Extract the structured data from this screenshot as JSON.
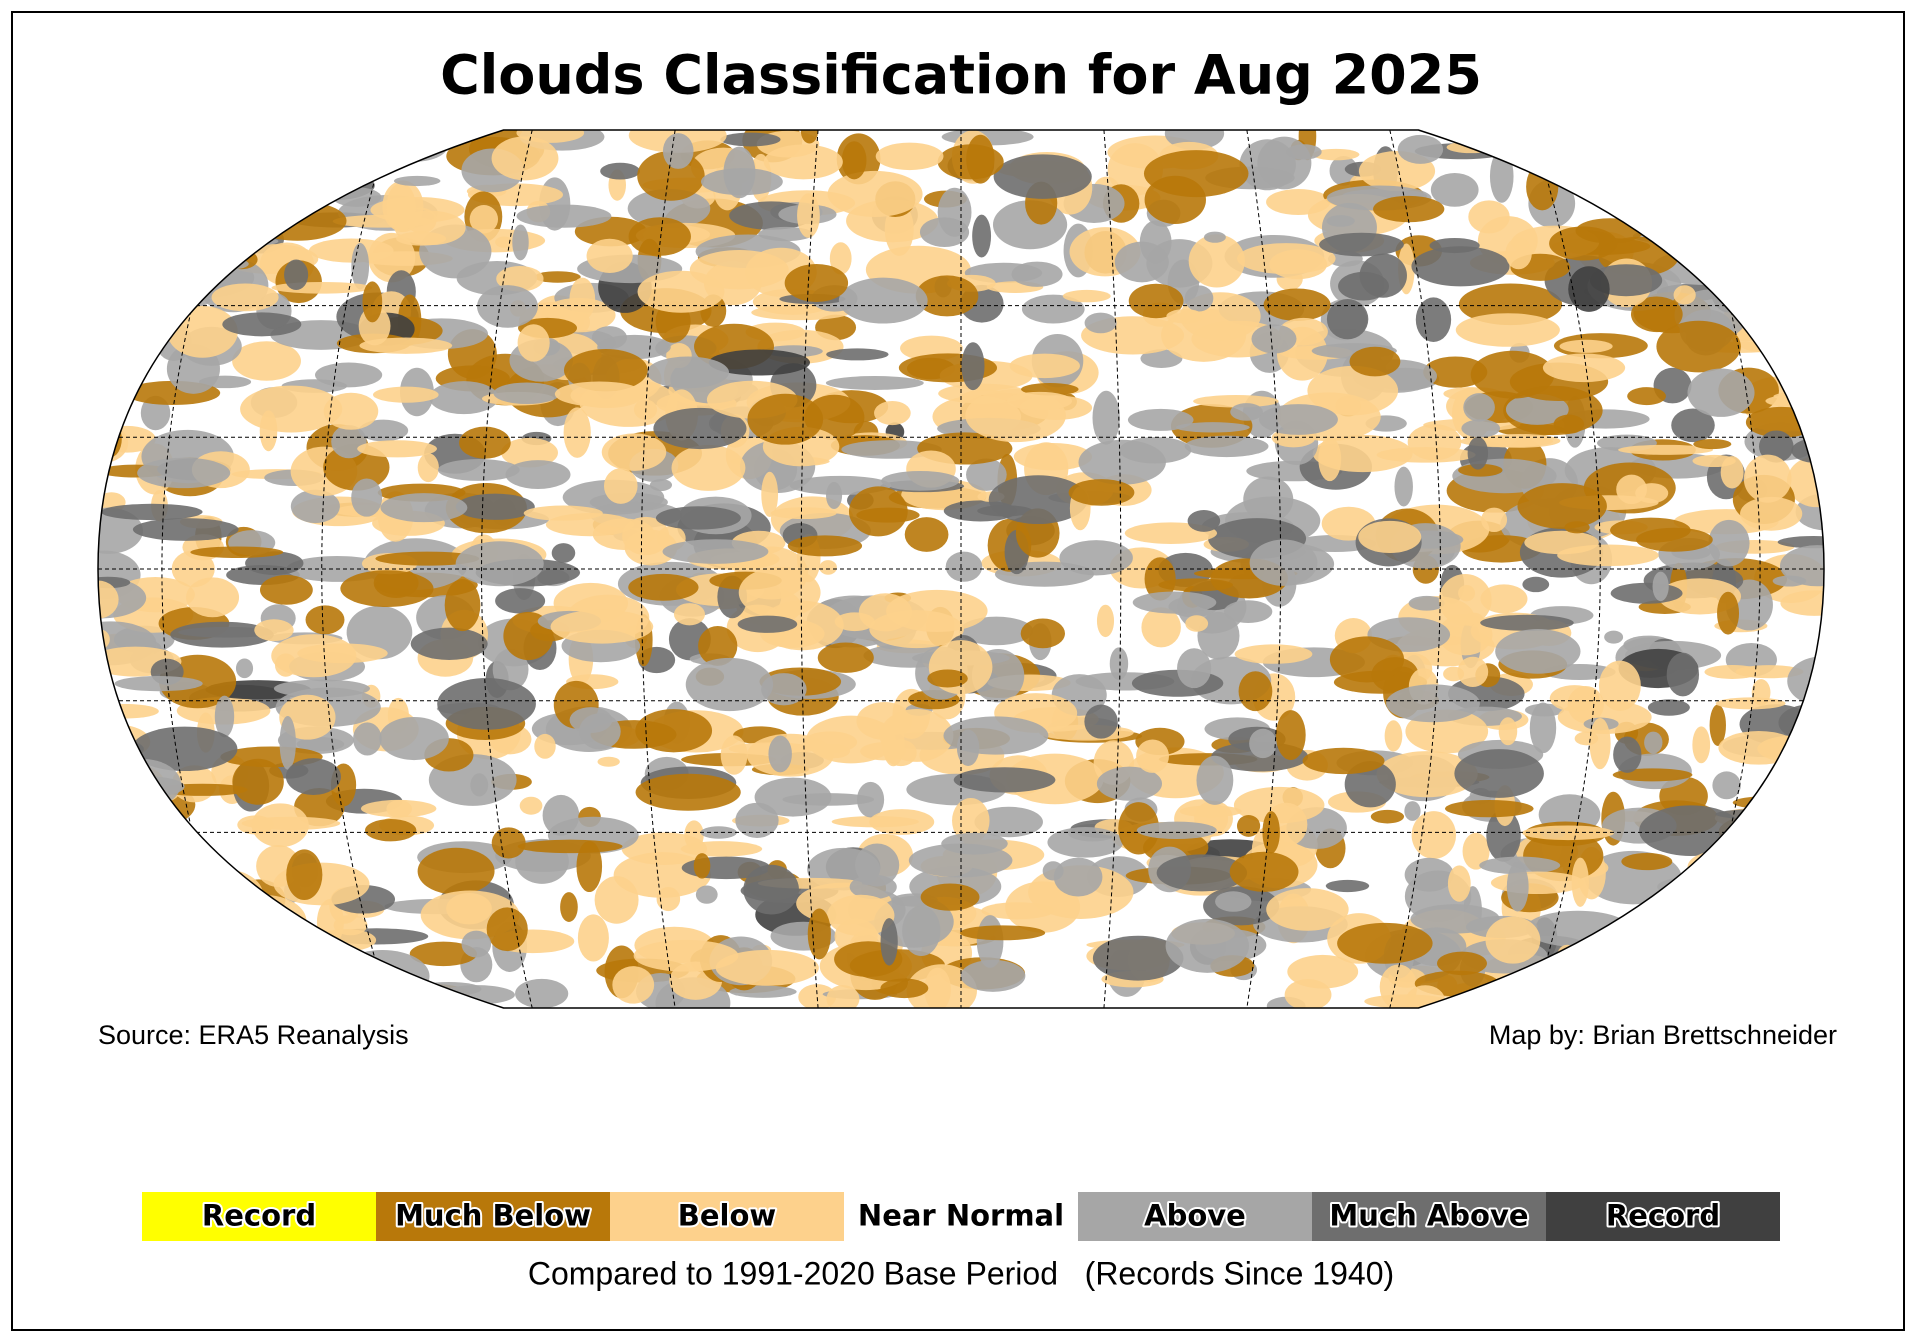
{
  "title": "Clouds Classification for Aug 2025",
  "source": "Source: ERA5 Reanalysis",
  "credit": "Map by: Brian Brettschneider",
  "legend": {
    "items": [
      {
        "label": "Record",
        "color": "#ffff00"
      },
      {
        "label": "Much Below",
        "color": "#b8780a"
      },
      {
        "label": "Below",
        "color": "#fdd18c"
      },
      {
        "label": "Near Normal",
        "color": "#ffffff"
      },
      {
        "label": "Above",
        "color": "#a6a6a6"
      },
      {
        "label": "Much Above",
        "color": "#6e6e6e"
      },
      {
        "label": "Record",
        "color": "#404040"
      }
    ],
    "note": "Compared to 1991-2020 Base Period   (Records Since 1940)"
  }
}
